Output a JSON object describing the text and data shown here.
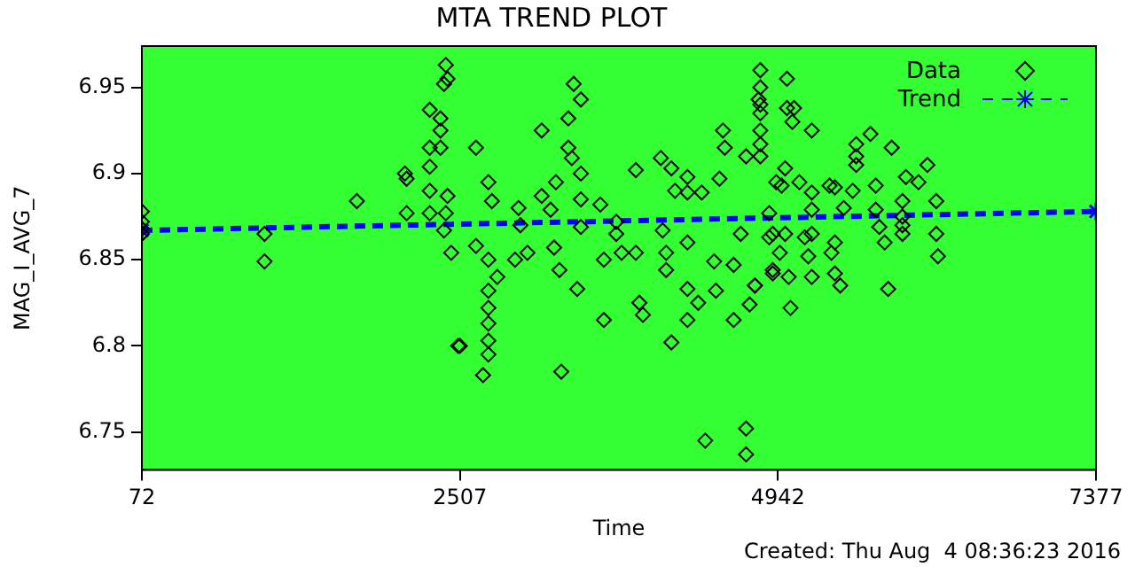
{
  "chart_data": {
    "type": "scatter",
    "title": "MTA TREND PLOT",
    "xlabel": "Time",
    "ylabel": "MAG_I_AVG_7",
    "annotations": [
      "Created: Thu Aug  4 08:36:23 2016"
    ],
    "xlim": [
      72,
      7377
    ],
    "xticks": [
      72,
      2507,
      4942,
      7377
    ],
    "ylim": [
      6.728,
      6.974
    ],
    "yticks": [
      6.75,
      6.8,
      6.85,
      6.9,
      6.95
    ],
    "grid": false,
    "legend": "top right",
    "marker": "diamond",
    "series": [
      {
        "name": "Data",
        "color": "#000000",
        "x": [
          72,
          72,
          72,
          72,
          1011,
          1011,
          1718,
          2086,
          2099,
          2099,
          2276,
          2276,
          2276,
          2276,
          2276,
          2358,
          2358,
          2358,
          2399,
          2412,
          2385,
          2412,
          2399,
          2440,
          2494,
          2385,
          2630,
          2630,
          2725,
          2752,
          2725,
          2725,
          2725,
          2725,
          2725,
          2725,
          2684,
          2507,
          2793,
          2956,
          2970,
          3024,
          2929,
          3133,
          3133,
          3228,
          3269,
          3242,
          3201,
          3337,
          3364,
          3337,
          3378,
          3433,
          3405,
          3283,
          3433,
          3433,
          3433,
          3609,
          3609,
          3582,
          3704,
          3704,
          3745,
          3854,
          3854,
          3881,
          3908,
          4045,
          4059,
          4086,
          4086,
          4126,
          4126,
          4154,
          4249,
          4249,
          4249,
          4249,
          4249,
          4331,
          4358,
          4385,
          4453,
          4467,
          4494,
          4521,
          4535,
          4603,
          4603,
          4657,
          4698,
          4698,
          4698,
          4725,
          4766,
          4807,
          4807,
          4807,
          4807,
          4807,
          4807,
          4807,
          4875,
          4902,
          4929,
          4794,
          5011,
          5011,
          5065,
          5052,
          5201,
          4997,
          4970,
          5106,
          4902,
          4875,
          4902,
          4997,
          4956,
          5024,
          5038,
          4765,
          5147,
          5174,
          5201,
          5201,
          5201,
          5201,
          5337,
          5378,
          5378,
          5351,
          5378,
          5419,
          5446,
          5514,
          5541,
          5541,
          5541,
          5650,
          5691,
          5691,
          5718,
          5759,
          5786,
          5813,
          5895,
          5895,
          5895,
          5895,
          5922,
          6018,
          6086,
          6154,
          6154,
          6167
        ],
        "values": [
          6.878,
          6.872,
          6.868,
          6.865,
          6.865,
          6.849,
          6.884,
          6.9,
          6.897,
          6.877,
          6.937,
          6.915,
          6.904,
          6.89,
          6.877,
          6.932,
          6.925,
          6.915,
          6.963,
          6.955,
          6.952,
          6.887,
          6.877,
          6.854,
          6.8,
          6.867,
          6.915,
          6.858,
          6.895,
          6.884,
          6.85,
          6.832,
          6.822,
          6.813,
          6.803,
          6.795,
          6.783,
          6.8,
          6.84,
          6.88,
          6.87,
          6.854,
          6.85,
          6.925,
          6.887,
          6.857,
          6.844,
          6.895,
          6.879,
          6.932,
          6.909,
          6.915,
          6.952,
          6.943,
          6.833,
          6.785,
          6.885,
          6.869,
          6.9,
          6.815,
          6.85,
          6.882,
          6.872,
          6.865,
          6.854,
          6.902,
          6.854,
          6.825,
          6.818,
          6.909,
          6.867,
          6.844,
          6.854,
          6.903,
          6.802,
          6.89,
          6.898,
          6.86,
          6.889,
          6.833,
          6.815,
          6.825,
          6.889,
          6.745,
          6.849,
          6.832,
          6.897,
          6.925,
          6.915,
          6.847,
          6.815,
          6.865,
          6.752,
          6.737,
          6.91,
          6.824,
          6.835,
          6.96,
          6.95,
          6.94,
          6.935,
          6.925,
          6.917,
          6.91,
          6.863,
          6.844,
          6.895,
          6.943,
          6.955,
          6.938,
          6.938,
          6.93,
          6.925,
          6.903,
          6.893,
          6.895,
          6.865,
          6.877,
          6.842,
          6.865,
          6.854,
          6.84,
          6.822,
          6.835,
          6.863,
          6.852,
          6.84,
          6.879,
          6.889,
          6.865,
          6.893,
          6.892,
          6.86,
          6.854,
          6.842,
          6.835,
          6.88,
          6.89,
          6.917,
          6.91,
          6.905,
          6.923,
          6.879,
          6.893,
          6.869,
          6.86,
          6.833,
          6.915,
          6.884,
          6.875,
          6.87,
          6.865,
          6.898,
          6.895,
          6.905,
          6.884,
          6.865,
          6.852
        ]
      },
      {
        "name": "Trend",
        "type": "line",
        "marker": "cross",
        "line_style": "dashed",
        "color": "#0000ff",
        "x": [
          72,
          7377
        ],
        "values": [
          6.867,
          6.878
        ]
      }
    ]
  }
}
